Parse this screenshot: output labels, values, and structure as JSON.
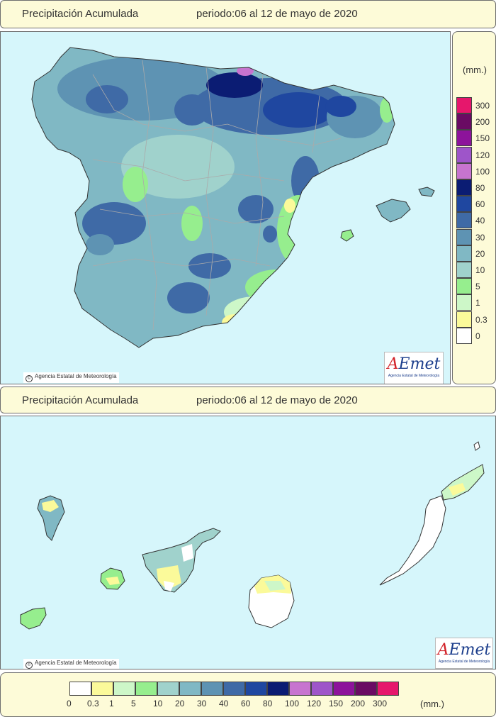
{
  "top_title": {
    "label": "Precipitación Acumulada",
    "period": "periodo:06 al 12 de mayo de 2020"
  },
  "bottom_title": {
    "label": "Precipitación Acumulada",
    "period": "periodo:06 al 12 de mayo de 2020"
  },
  "credit": "Agencia Estatal de Meteorología",
  "logo": {
    "word_a": "A",
    "word_rest": "Emet",
    "subtitle": "Agencia Estatal de Meteorología"
  },
  "legend": {
    "unit": "(mm.)",
    "classes": [
      {
        "label": "0",
        "color": "#ffffff"
      },
      {
        "label": "0.3",
        "color": "#fbfa9a"
      },
      {
        "label": "1",
        "color": "#cdf7c8"
      },
      {
        "label": "5",
        "color": "#96ee8e"
      },
      {
        "label": "10",
        "color": "#a0d2cc"
      },
      {
        "label": "20",
        "color": "#80b8c4"
      },
      {
        "label": "30",
        "color": "#5e93b3"
      },
      {
        "label": "40",
        "color": "#3f6aa6"
      },
      {
        "label": "60",
        "color": "#1f47a0"
      },
      {
        "label": "80",
        "color": "#0b1c73"
      },
      {
        "label": "100",
        "color": "#c774cf"
      },
      {
        "label": "120",
        "color": "#9e55c9"
      },
      {
        "label": "150",
        "color": "#8d139b"
      },
      {
        "label": "200",
        "color": "#6a0b63"
      },
      {
        "label": "300",
        "color": "#e6176c"
      }
    ]
  },
  "map_colors": {
    "sea": "#d6f6fb",
    "border": "#999999"
  }
}
